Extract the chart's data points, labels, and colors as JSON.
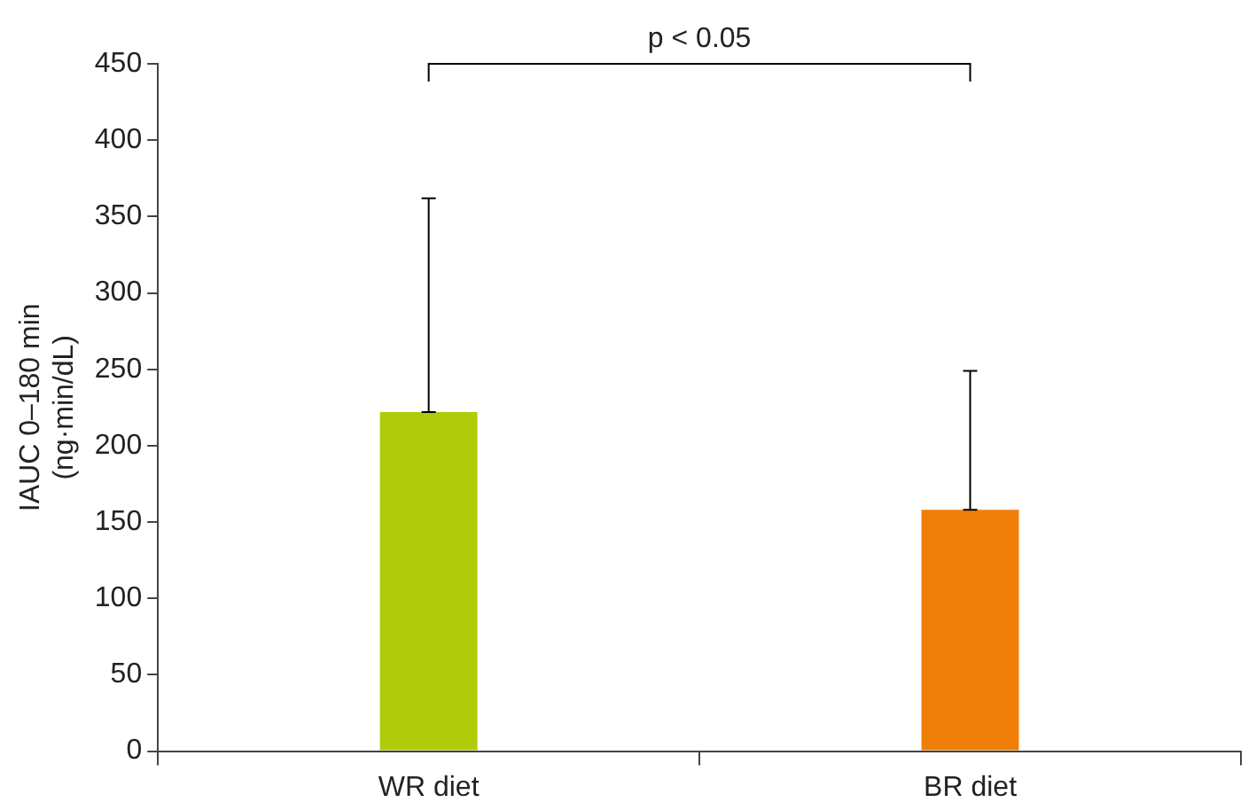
{
  "chart_data": {
    "type": "bar",
    "ylabel": "IAUC 0–180 min\n(ng·min/dL)",
    "categories": [
      "WR diet",
      "BR diet"
    ],
    "values": [
      222,
      158
    ],
    "colors": [
      "#b0cb0a",
      "#f07f0a"
    ],
    "errors": [
      [
        222,
        362
      ],
      [
        158,
        249
      ]
    ],
    "ylim": [
      0,
      450
    ],
    "yticks": [
      0,
      50,
      100,
      150,
      200,
      250,
      300,
      350,
      400,
      450
    ],
    "grid": false,
    "legend": false,
    "annotations": [
      "p < 0.05"
    ]
  }
}
